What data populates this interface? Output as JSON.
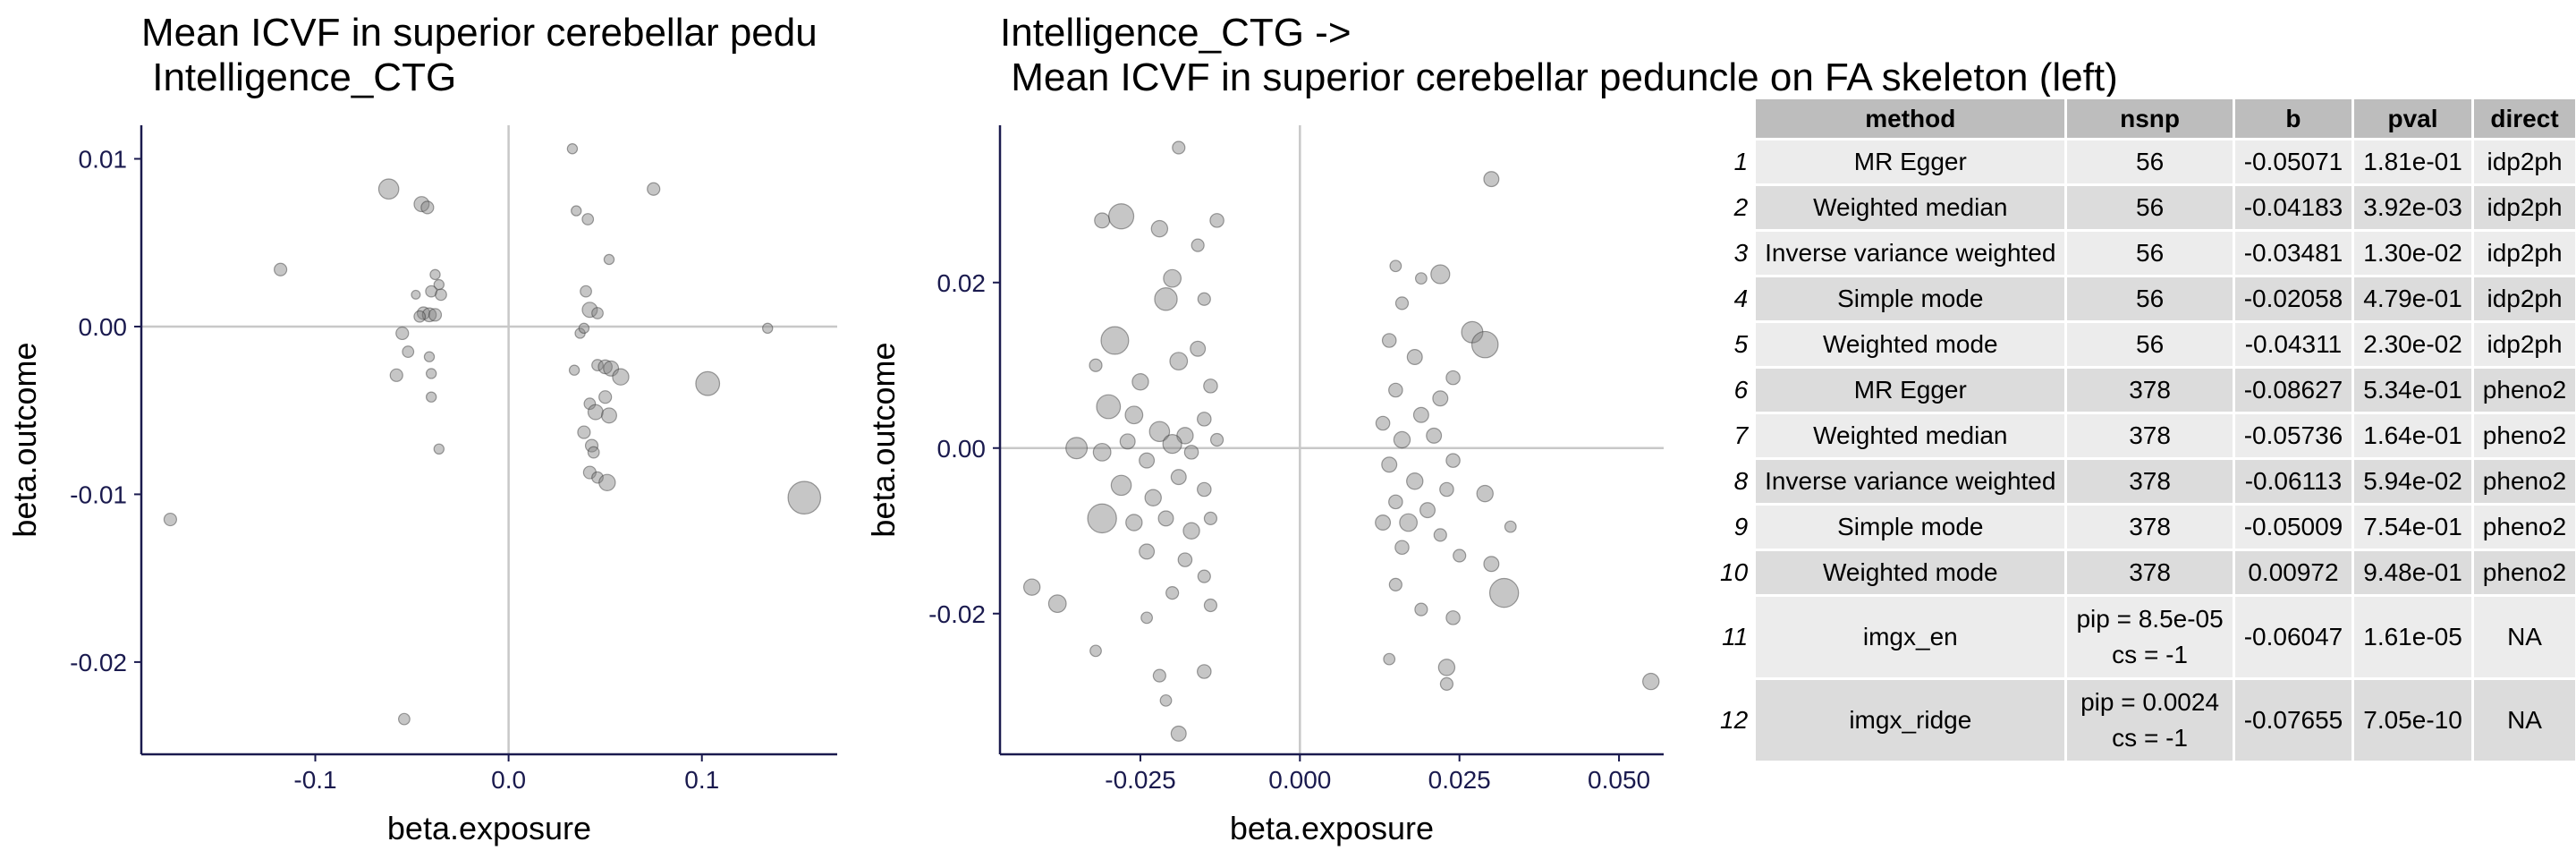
{
  "plot1": {
    "title_line1": "Mean ICVF in superior cerebellar pedu",
    "title_line2": " Intelligence_CTG"
  },
  "plot2": {
    "title_line1": "Intelligence_CTG ->",
    "title_line2": " Mean ICVF in superior cerebellar peduncle on FA skeleton (left)"
  },
  "chart_data": [
    {
      "type": "scatter",
      "title": "Mean ICVF in superior cerebellar pedu\n Intelligence_CTG",
      "xlabel": "beta.exposure",
      "ylabel": "beta.outcome",
      "xlim": [
        -0.19,
        0.17
      ],
      "ylim": [
        -0.0255,
        0.012
      ],
      "xticks": [
        -0.1,
        0.0,
        0.1
      ],
      "xtick_labels": [
        "-0.1",
        "0.0",
        "0.1"
      ],
      "yticks": [
        -0.02,
        -0.01,
        0.0,
        0.01
      ],
      "ytick_labels": [
        "-0.02",
        "-0.01",
        "0.00",
        "0.01"
      ],
      "reference_lines": {
        "x": 0,
        "y": 0
      },
      "point_color": "#808080",
      "points": [
        {
          "x": -0.175,
          "y": -0.0115,
          "s": 1.0
        },
        {
          "x": -0.118,
          "y": 0.0034,
          "s": 1.0
        },
        {
          "x": -0.062,
          "y": 0.0082,
          "s": 1.6
        },
        {
          "x": -0.045,
          "y": 0.0073,
          "s": 1.2
        },
        {
          "x": -0.042,
          "y": 0.0071,
          "s": 1.0
        },
        {
          "x": -0.038,
          "y": 0.0031,
          "s": 0.8
        },
        {
          "x": -0.036,
          "y": 0.0025,
          "s": 0.8
        },
        {
          "x": -0.04,
          "y": 0.0021,
          "s": 0.9
        },
        {
          "x": -0.035,
          "y": 0.0019,
          "s": 0.9
        },
        {
          "x": -0.048,
          "y": 0.0019,
          "s": 0.7
        },
        {
          "x": -0.044,
          "y": 0.0008,
          "s": 1.0
        },
        {
          "x": -0.041,
          "y": 0.0007,
          "s": 1.1
        },
        {
          "x": -0.038,
          "y": 0.0007,
          "s": 1.0
        },
        {
          "x": -0.046,
          "y": 0.0006,
          "s": 0.9
        },
        {
          "x": -0.055,
          "y": -0.0004,
          "s": 1.0
        },
        {
          "x": -0.052,
          "y": -0.0015,
          "s": 0.9
        },
        {
          "x": -0.041,
          "y": -0.0018,
          "s": 0.8
        },
        {
          "x": -0.058,
          "y": -0.0029,
          "s": 1.0
        },
        {
          "x": -0.04,
          "y": -0.0028,
          "s": 0.8
        },
        {
          "x": -0.04,
          "y": -0.0042,
          "s": 0.8
        },
        {
          "x": -0.036,
          "y": -0.0073,
          "s": 0.8
        },
        {
          "x": -0.054,
          "y": -0.0234,
          "s": 0.9
        },
        {
          "x": 0.033,
          "y": 0.0106,
          "s": 0.8
        },
        {
          "x": 0.035,
          "y": 0.0069,
          "s": 0.8
        },
        {
          "x": 0.041,
          "y": 0.0064,
          "s": 0.9
        },
        {
          "x": 0.052,
          "y": 0.004,
          "s": 0.8
        },
        {
          "x": 0.075,
          "y": 0.0082,
          "s": 1.0
        },
        {
          "x": 0.04,
          "y": 0.0021,
          "s": 0.9
        },
        {
          "x": 0.042,
          "y": 0.001,
          "s": 1.2
        },
        {
          "x": 0.046,
          "y": 0.0008,
          "s": 0.9
        },
        {
          "x": 0.037,
          "y": -0.0004,
          "s": 0.8
        },
        {
          "x": 0.039,
          "y": -0.0001,
          "s": 0.8
        },
        {
          "x": 0.034,
          "y": -0.0026,
          "s": 0.8
        },
        {
          "x": 0.046,
          "y": -0.0023,
          "s": 0.9
        },
        {
          "x": 0.05,
          "y": -0.0024,
          "s": 1.1
        },
        {
          "x": 0.053,
          "y": -0.0025,
          "s": 1.2
        },
        {
          "x": 0.058,
          "y": -0.003,
          "s": 1.3
        },
        {
          "x": 0.042,
          "y": -0.0046,
          "s": 0.9
        },
        {
          "x": 0.05,
          "y": -0.0042,
          "s": 1.0
        },
        {
          "x": 0.045,
          "y": -0.0051,
          "s": 1.2
        },
        {
          "x": 0.052,
          "y": -0.0053,
          "s": 1.2
        },
        {
          "x": 0.039,
          "y": -0.0063,
          "s": 1.0
        },
        {
          "x": 0.043,
          "y": -0.0071,
          "s": 1.0
        },
        {
          "x": 0.044,
          "y": -0.0075,
          "s": 0.9
        },
        {
          "x": 0.042,
          "y": -0.0087,
          "s": 1.0
        },
        {
          "x": 0.046,
          "y": -0.009,
          "s": 0.9
        },
        {
          "x": 0.051,
          "y": -0.0093,
          "s": 1.3
        },
        {
          "x": 0.103,
          "y": -0.0034,
          "s": 1.9
        },
        {
          "x": 0.134,
          "y": -0.0001,
          "s": 0.8
        },
        {
          "x": 0.153,
          "y": -0.0102,
          "s": 2.6
        }
      ]
    },
    {
      "type": "scatter",
      "title": "Intelligence_CTG ->\n Mean ICVF in superior cerebellar peduncle on FA skeleton (left)",
      "xlabel": "beta.exposure",
      "ylabel": "beta.outcome",
      "xlim": [
        -0.047,
        0.057
      ],
      "ylim": [
        -0.037,
        0.039
      ],
      "xticks": [
        -0.025,
        0.0,
        0.025,
        0.05
      ],
      "xtick_labels": [
        "-0.025",
        "0.000",
        "0.025",
        "0.050"
      ],
      "yticks": [
        -0.02,
        0.0,
        0.02
      ],
      "ytick_labels": [
        "-0.02",
        "0.00",
        "0.02"
      ],
      "reference_lines": {
        "x": 0,
        "y": 0
      },
      "point_color": "#808080",
      "points": [
        {
          "x": -0.019,
          "y": 0.0363,
          "s": 1.0
        },
        {
          "x": -0.031,
          "y": 0.0275,
          "s": 1.2
        },
        {
          "x": -0.022,
          "y": 0.0265,
          "s": 1.3
        },
        {
          "x": -0.028,
          "y": 0.028,
          "s": 2.0
        },
        {
          "x": -0.013,
          "y": 0.0275,
          "s": 1.1
        },
        {
          "x": -0.016,
          "y": 0.0245,
          "s": 1.0
        },
        {
          "x": -0.029,
          "y": 0.013,
          "s": 2.2
        },
        {
          "x": -0.021,
          "y": 0.018,
          "s": 1.8
        },
        {
          "x": -0.02,
          "y": 0.0205,
          "s": 1.4
        },
        {
          "x": -0.015,
          "y": 0.018,
          "s": 1.0
        },
        {
          "x": -0.032,
          "y": 0.01,
          "s": 1.0
        },
        {
          "x": -0.025,
          "y": 0.008,
          "s": 1.3
        },
        {
          "x": -0.019,
          "y": 0.0105,
          "s": 1.4
        },
        {
          "x": -0.016,
          "y": 0.012,
          "s": 1.2
        },
        {
          "x": -0.014,
          "y": 0.0075,
          "s": 1.1
        },
        {
          "x": -0.03,
          "y": 0.005,
          "s": 1.9
        },
        {
          "x": -0.026,
          "y": 0.004,
          "s": 1.4
        },
        {
          "x": -0.022,
          "y": 0.002,
          "s": 1.6
        },
        {
          "x": -0.018,
          "y": 0.0015,
          "s": 1.3
        },
        {
          "x": -0.015,
          "y": 0.0035,
          "s": 1.1
        },
        {
          "x": -0.035,
          "y": 0.0,
          "s": 1.7
        },
        {
          "x": -0.031,
          "y": -0.0005,
          "s": 1.4
        },
        {
          "x": -0.027,
          "y": 0.0008,
          "s": 1.2
        },
        {
          "x": -0.024,
          "y": -0.0015,
          "s": 1.2
        },
        {
          "x": -0.02,
          "y": 0.0005,
          "s": 1.5
        },
        {
          "x": -0.017,
          "y": -0.0005,
          "s": 1.1
        },
        {
          "x": -0.013,
          "y": 0.001,
          "s": 1.0
        },
        {
          "x": -0.028,
          "y": -0.0045,
          "s": 1.6
        },
        {
          "x": -0.023,
          "y": -0.006,
          "s": 1.3
        },
        {
          "x": -0.019,
          "y": -0.0035,
          "s": 1.2
        },
        {
          "x": -0.015,
          "y": -0.005,
          "s": 1.1
        },
        {
          "x": -0.031,
          "y": -0.0085,
          "s": 2.3
        },
        {
          "x": -0.026,
          "y": -0.009,
          "s": 1.3
        },
        {
          "x": -0.021,
          "y": -0.0085,
          "s": 1.2
        },
        {
          "x": -0.017,
          "y": -0.01,
          "s": 1.3
        },
        {
          "x": -0.014,
          "y": -0.0085,
          "s": 1.0
        },
        {
          "x": -0.024,
          "y": -0.0125,
          "s": 1.2
        },
        {
          "x": -0.018,
          "y": -0.0135,
          "s": 1.1
        },
        {
          "x": -0.015,
          "y": -0.0155,
          "s": 1.0
        },
        {
          "x": -0.042,
          "y": -0.0168,
          "s": 1.3
        },
        {
          "x": -0.038,
          "y": -0.0188,
          "s": 1.4
        },
        {
          "x": -0.02,
          "y": -0.0175,
          "s": 1.0
        },
        {
          "x": -0.014,
          "y": -0.019,
          "s": 1.0
        },
        {
          "x": -0.024,
          "y": -0.0205,
          "s": 0.9
        },
        {
          "x": -0.032,
          "y": -0.0245,
          "s": 0.9
        },
        {
          "x": -0.022,
          "y": -0.0275,
          "s": 1.0
        },
        {
          "x": -0.015,
          "y": -0.027,
          "s": 1.1
        },
        {
          "x": -0.019,
          "y": -0.0345,
          "s": 1.2
        },
        {
          "x": -0.021,
          "y": -0.0305,
          "s": 0.9
        },
        {
          "x": 0.015,
          "y": 0.022,
          "s": 0.9
        },
        {
          "x": 0.019,
          "y": 0.0205,
          "s": 0.9
        },
        {
          "x": 0.022,
          "y": 0.021,
          "s": 1.5
        },
        {
          "x": 0.016,
          "y": 0.0175,
          "s": 1.0
        },
        {
          "x": 0.03,
          "y": 0.0325,
          "s": 1.2
        },
        {
          "x": 0.027,
          "y": 0.014,
          "s": 1.7
        },
        {
          "x": 0.029,
          "y": 0.0125,
          "s": 2.1
        },
        {
          "x": 0.014,
          "y": 0.013,
          "s": 1.1
        },
        {
          "x": 0.018,
          "y": 0.011,
          "s": 1.2
        },
        {
          "x": 0.022,
          "y": 0.006,
          "s": 1.2
        },
        {
          "x": 0.024,
          "y": 0.0085,
          "s": 1.1
        },
        {
          "x": 0.015,
          "y": 0.007,
          "s": 1.1
        },
        {
          "x": 0.019,
          "y": 0.004,
          "s": 1.2
        },
        {
          "x": 0.013,
          "y": 0.003,
          "s": 1.1
        },
        {
          "x": 0.016,
          "y": 0.001,
          "s": 1.3
        },
        {
          "x": 0.021,
          "y": 0.0015,
          "s": 1.2
        },
        {
          "x": 0.024,
          "y": -0.0015,
          "s": 1.1
        },
        {
          "x": 0.014,
          "y": -0.002,
          "s": 1.2
        },
        {
          "x": 0.018,
          "y": -0.004,
          "s": 1.3
        },
        {
          "x": 0.023,
          "y": -0.005,
          "s": 1.1
        },
        {
          "x": 0.015,
          "y": -0.0065,
          "s": 1.1
        },
        {
          "x": 0.02,
          "y": -0.0075,
          "s": 1.2
        },
        {
          "x": 0.013,
          "y": -0.009,
          "s": 1.2
        },
        {
          "x": 0.017,
          "y": -0.009,
          "s": 1.4
        },
        {
          "x": 0.022,
          "y": -0.0105,
          "s": 1.0
        },
        {
          "x": 0.016,
          "y": -0.012,
          "s": 1.1
        },
        {
          "x": 0.025,
          "y": -0.013,
          "s": 1.0
        },
        {
          "x": 0.029,
          "y": -0.0055,
          "s": 1.3
        },
        {
          "x": 0.033,
          "y": -0.0095,
          "s": 0.9
        },
        {
          "x": 0.03,
          "y": -0.014,
          "s": 1.2
        },
        {
          "x": 0.015,
          "y": -0.0165,
          "s": 1.0
        },
        {
          "x": 0.019,
          "y": -0.0195,
          "s": 1.0
        },
        {
          "x": 0.024,
          "y": -0.0205,
          "s": 1.1
        },
        {
          "x": 0.014,
          "y": -0.0255,
          "s": 0.9
        },
        {
          "x": 0.023,
          "y": -0.0265,
          "s": 1.3
        },
        {
          "x": 0.023,
          "y": -0.0285,
          "s": 1.0
        },
        {
          "x": 0.032,
          "y": -0.0175,
          "s": 2.3
        },
        {
          "x": 0.055,
          "y": -0.0282,
          "s": 1.3
        }
      ]
    }
  ],
  "table": {
    "columns": [
      "method",
      "nsnp",
      "b",
      "pval",
      "direct"
    ],
    "rows": [
      {
        "n": "1",
        "method": "MR Egger",
        "nsnp": "56",
        "b": "-0.05071",
        "pval": "1.81e-01",
        "direct": "idp2ph"
      },
      {
        "n": "2",
        "method": "Weighted median",
        "nsnp": "56",
        "b": "-0.04183",
        "pval": "3.92e-03",
        "direct": "idp2ph"
      },
      {
        "n": "3",
        "method": "Inverse variance weighted",
        "nsnp": "56",
        "b": "-0.03481",
        "pval": "1.30e-02",
        "direct": "idp2ph"
      },
      {
        "n": "4",
        "method": "Simple mode",
        "nsnp": "56",
        "b": "-0.02058",
        "pval": "4.79e-01",
        "direct": "idp2ph"
      },
      {
        "n": "5",
        "method": "Weighted mode",
        "nsnp": "56",
        "b": "-0.04311",
        "pval": "2.30e-02",
        "direct": "idp2ph"
      },
      {
        "n": "6",
        "method": "MR Egger",
        "nsnp": "378",
        "b": "-0.08627",
        "pval": "5.34e-01",
        "direct": "pheno2"
      },
      {
        "n": "7",
        "method": "Weighted median",
        "nsnp": "378",
        "b": "-0.05736",
        "pval": "1.64e-01",
        "direct": "pheno2"
      },
      {
        "n": "8",
        "method": "Inverse variance weighted",
        "nsnp": "378",
        "b": "-0.06113",
        "pval": "5.94e-02",
        "direct": "pheno2"
      },
      {
        "n": "9",
        "method": "Simple mode",
        "nsnp": "378",
        "b": "-0.05009",
        "pval": "7.54e-01",
        "direct": "pheno2"
      },
      {
        "n": "10",
        "method": "Weighted mode",
        "nsnp": "378",
        "b": "0.00972",
        "pval": "9.48e-01",
        "direct": "pheno2"
      },
      {
        "n": "11",
        "method": "imgx_en",
        "nsnp_line1": "pip = 8.5e-05",
        "nsnp_line2": "cs = -1",
        "b": "-0.06047",
        "pval": "1.61e-05",
        "direct": "NA"
      },
      {
        "n": "12",
        "method": "imgx_ridge",
        "nsnp_line1": "pip = 0.0024",
        "nsnp_line2": "cs = -1",
        "b": "-0.07655",
        "pval": "7.05e-10",
        "direct": "NA"
      }
    ]
  }
}
